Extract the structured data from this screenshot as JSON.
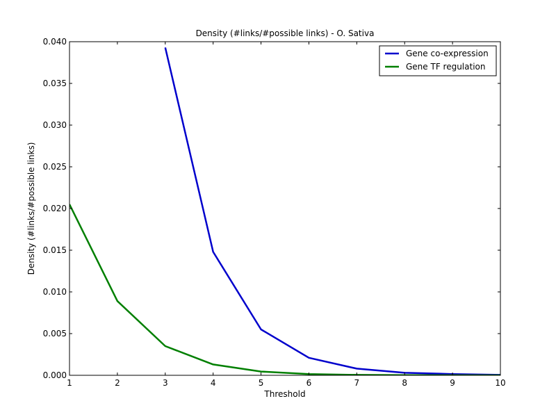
{
  "chart_data": {
    "type": "line",
    "title": "Density (#links/#possible links) - O. Sativa",
    "xlabel": "Threshold",
    "ylabel": "Density (#links/#possible links)",
    "xlim": [
      1,
      10
    ],
    "ylim": [
      0,
      0.04
    ],
    "xticks": [
      1,
      2,
      3,
      4,
      5,
      6,
      7,
      8,
      9,
      10
    ],
    "yticks": [
      0.0,
      0.005,
      0.01,
      0.015,
      0.02,
      0.025,
      0.03,
      0.035,
      0.04
    ],
    "ytick_labels": [
      "0.000",
      "0.005",
      "0.010",
      "0.015",
      "0.020",
      "0.025",
      "0.030",
      "0.035",
      "0.040"
    ],
    "grid": false,
    "legend_position": "top-right",
    "series": [
      {
        "name": "Gene co-expression",
        "color": "#0000cc",
        "x": [
          3,
          4,
          5,
          6,
          7,
          8,
          9,
          10
        ],
        "y": [
          0.0393,
          0.0148,
          0.0055,
          0.0021,
          0.0008,
          0.0003,
          0.00015,
          5e-05
        ]
      },
      {
        "name": "Gene TF regulation",
        "color": "#007f00",
        "x": [
          1,
          2,
          3,
          4,
          5,
          6,
          7,
          8,
          9,
          10
        ],
        "y": [
          0.0205,
          0.0089,
          0.0035,
          0.0013,
          0.00045,
          0.00015,
          5e-05,
          2e-05,
          1e-05,
          0.0
        ]
      }
    ]
  }
}
